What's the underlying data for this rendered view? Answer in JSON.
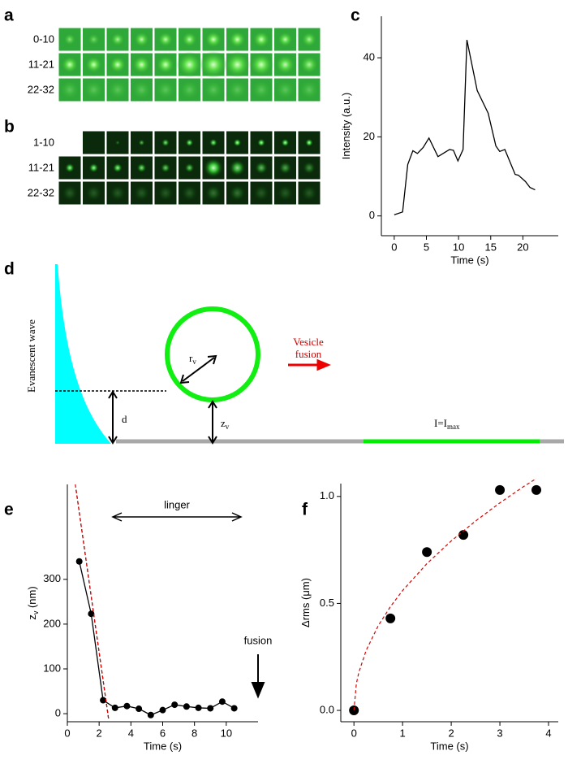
{
  "panel_labels": [
    "a",
    "b",
    "c",
    "d",
    "e",
    "f"
  ],
  "image_rows": {
    "a": [
      "0-10",
      "11-21",
      "22-32"
    ],
    "b": [
      "1-10",
      "11-21",
      "22-32"
    ]
  },
  "diagram": {
    "wave_label": "Evanescent wave",
    "d": "d",
    "r": "r",
    "r_sub": "v",
    "z": "z",
    "z_sub": "v",
    "vesicle": "Vesicle",
    "fusion": "fusion",
    "intensity": "I=I",
    "intensity_sub": "max"
  },
  "chart_data": [
    {
      "type": "line",
      "x_label": "Time (s)",
      "y_label": [
        "Intensity (a.u.)"
      ],
      "x": [
        0,
        1.3,
        2.1,
        2.9,
        3.6,
        4.5,
        5.4,
        6.8,
        8.6,
        9.2,
        9.9,
        10.7,
        11.3,
        12.9,
        14.6,
        15.8,
        16.4,
        17.2,
        18.8,
        19.3,
        20.4,
        21.1,
        21.9
      ],
      "series": [
        {
          "color": "#000000",
          "line": "solid",
          "marker": false,
          "values": [
            0.3,
            1,
            13,
            16.5,
            15.8,
            17.3,
            19.7,
            15,
            16.8,
            16.6,
            13.9,
            16.8,
            44.5,
            31.7,
            26,
            17.7,
            16.3,
            16.8,
            10.5,
            10.3,
            8.7,
            7.2,
            6.6
          ]
        }
      ],
      "xlim": [
        -2,
        25.5
      ],
      "ylim": [
        -5,
        50.5
      ],
      "xticks": [
        0,
        5,
        10,
        15,
        20
      ],
      "yticks": [
        0,
        20,
        40
      ]
    },
    {
      "type": "line",
      "x_label": "Time (s)",
      "y_label": [
        "z",
        "v",
        " (nm)"
      ],
      "annotations": [
        "linger",
        "fusion"
      ],
      "x": [
        0.75,
        1.5,
        2.25,
        3,
        3.75,
        4.5,
        5.25,
        6,
        6.75,
        7.5,
        8.25,
        9,
        9.75,
        10.5
      ],
      "series": [
        {
          "color": "#000000",
          "line": "solid",
          "marker": true,
          "values": [
            340,
            223,
            30,
            13,
            17,
            11,
            -3,
            8,
            20,
            16,
            13,
            12,
            27,
            12
          ]
        },
        {
          "color": "#000000",
          "line": "dashed",
          "marker": false,
          "x": [
            0.55,
            2.6
          ],
          "values": [
            500,
            -13
          ]
        },
        {
          "color": "#dd0000",
          "line": "dashed",
          "marker": false,
          "x": [
            0.5,
            2.6
          ],
          "values": [
            512,
            -13
          ]
        }
      ],
      "xlim": [
        0,
        12
      ],
      "ylim": [
        -18,
        512
      ],
      "xticks": [
        0,
        2,
        4,
        6,
        8,
        10
      ],
      "yticks": [
        0,
        100,
        200,
        300
      ]
    },
    {
      "type": "scatter",
      "x_label": "Time (s)",
      "y_label": [
        "Δrms (μm)"
      ],
      "x": [
        0,
        0.75,
        1.5,
        2.25,
        3,
        3.75
      ],
      "series": [
        {
          "color": "#000000",
          "line": "none",
          "marker": true,
          "values": [
            0,
            0.43,
            0.74,
            0.82,
            1.03,
            1.03
          ]
        },
        {
          "color": "#dd0000",
          "line": "dashed",
          "marker": false,
          "x": [
            0,
            0.05,
            0.1,
            0.25,
            0.5,
            0.75,
            1,
            1.5,
            2,
            2.5,
            3,
            3.5,
            3.75
          ],
          "values": [
            0,
            0.125,
            0.177,
            0.28,
            0.396,
            0.485,
            0.56,
            0.686,
            0.792,
            0.885,
            0.97,
            1.048,
            1.084
          ]
        }
      ],
      "xlim": [
        -0.27,
        4.2
      ],
      "ylim": [
        -0.053,
        1.06
      ],
      "xticks": [
        0,
        1,
        2,
        3,
        4
      ],
      "yticks": [
        {
          "value": 0,
          "label": "0.0"
        },
        {
          "value": 0.5,
          "label": "0.5"
        },
        {
          "value": 1,
          "label": "1.0"
        }
      ]
    }
  ]
}
